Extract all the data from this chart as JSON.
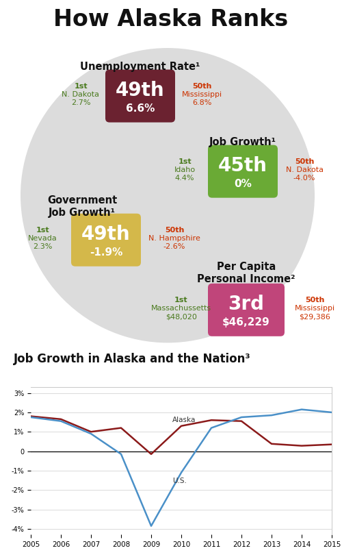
{
  "title": "How Alaska Ranks",
  "bg_color": "#ffffff",
  "ellipse_color": "#dcdcdc",
  "unemployment": {
    "label": "Unemployment Rate¹",
    "rank": "49th",
    "value": "6.6%",
    "badge_color": "#6b2230",
    "first_label": "1st",
    "first_state": "N. Dakota",
    "first_val": "2.7%",
    "last_label": "50th",
    "last_state": "Mississippi",
    "last_val": "6.8%"
  },
  "job_growth": {
    "label": "Job Growth¹",
    "rank": "45th",
    "value": "0%",
    "badge_color": "#6aaa35",
    "first_label": "1st",
    "first_state": "Idaho",
    "first_val": "4.4%",
    "last_label": "50th",
    "last_state": "N. Dakota",
    "last_val": "-4.0%"
  },
  "gov_job_growth": {
    "label": "Government\nJob Growth¹",
    "rank": "49th",
    "value": "-1.9%",
    "badge_color": "#d4b84a",
    "first_label": "1st",
    "first_state": "Nevada",
    "first_val": "2.3%",
    "last_label": "50th",
    "last_state": "N. Hampshire",
    "last_val": "-2.6%"
  },
  "per_capita": {
    "label": "Per Capita\nPersonal Income²",
    "rank": "3rd",
    "value": "$46,229",
    "badge_color": "#c0457a",
    "first_label": "1st",
    "first_state": "Massachussetts",
    "first_val": "$48,020",
    "last_label": "50th",
    "last_state": "Mississippi",
    "last_val": "$29,386"
  },
  "chart_title": "Job Growth in Alaska and the Nation³",
  "years": [
    2005,
    2006,
    2007,
    2008,
    2009,
    2010,
    2011,
    2012,
    2013,
    2014,
    2015
  ],
  "alaska": [
    1.8,
    1.65,
    1.0,
    1.2,
    -0.15,
    1.3,
    1.6,
    1.55,
    0.38,
    0.28,
    0.35
  ],
  "us": [
    1.75,
    1.55,
    0.9,
    -0.15,
    -3.85,
    -1.1,
    1.2,
    1.75,
    1.85,
    2.15,
    2.0
  ],
  "alaska_color": "#8b1a1a",
  "us_color": "#4a90c8",
  "alaska_label": "Alaska",
  "us_label": "U.S.",
  "ylim": [
    -4.3,
    3.3
  ],
  "green": "#4a7a1e",
  "red": "#cc3300"
}
